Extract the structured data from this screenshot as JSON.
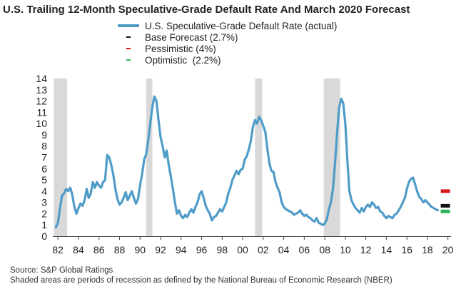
{
  "chart_data": {
    "type": "line",
    "title": "U.S. Trailing 12-Month Speculative-Grade Default Rate And March 2020 Forecast",
    "xlabel": "",
    "ylabel": "",
    "ylim": [
      0,
      14
    ],
    "xlim": [
      1981.5,
      2020.3
    ],
    "y_ticks": [
      "0",
      "1",
      "2",
      "3",
      "4",
      "5",
      "6",
      "7",
      "8",
      "9",
      "10",
      "11",
      "12",
      "13",
      "14"
    ],
    "x_ticks": [
      {
        "year": 1982,
        "label": "82"
      },
      {
        "year": 1984,
        "label": "84"
      },
      {
        "year": 1986,
        "label": "86"
      },
      {
        "year": 1988,
        "label": "88"
      },
      {
        "year": 1990,
        "label": "90"
      },
      {
        "year": 1992,
        "label": "92"
      },
      {
        "year": 1994,
        "label": "94"
      },
      {
        "year": 1996,
        "label": "96"
      },
      {
        "year": 1998,
        "label": "98"
      },
      {
        "year": 2000,
        "label": "00"
      },
      {
        "year": 2002,
        "label": "02"
      },
      {
        "year": 2004,
        "label": "04"
      },
      {
        "year": 2006,
        "label": "06"
      },
      {
        "year": 2008,
        "label": "08"
      },
      {
        "year": 2010,
        "label": "10"
      },
      {
        "year": 2012,
        "label": "12"
      },
      {
        "year": 2014,
        "label": "14"
      },
      {
        "year": 2016,
        "label": "16"
      },
      {
        "year": 2018,
        "label": "18"
      },
      {
        "year": 2020,
        "label": "20"
      }
    ],
    "recessions": [
      [
        1981.6,
        1982.9
      ],
      [
        1990.6,
        1991.2
      ],
      [
        2001.2,
        2001.9
      ],
      [
        2007.9,
        2009.5
      ]
    ],
    "grid": false,
    "legend_position": "top",
    "series": [
      {
        "name": "U.S. Speculative-Grade Default Rate (actual)",
        "color": "#4f9cc9",
        "points": [
          [
            1981.8,
            0.8
          ],
          [
            1982.0,
            1.2
          ],
          [
            1982.2,
            2.5
          ],
          [
            1982.4,
            3.6
          ],
          [
            1982.6,
            3.8
          ],
          [
            1982.8,
            4.2
          ],
          [
            1983.0,
            4.0
          ],
          [
            1983.2,
            4.3
          ],
          [
            1983.4,
            3.7
          ],
          [
            1983.6,
            2.6
          ],
          [
            1983.8,
            2.0
          ],
          [
            1984.0,
            2.5
          ],
          [
            1984.2,
            2.9
          ],
          [
            1984.4,
            2.7
          ],
          [
            1984.6,
            3.2
          ],
          [
            1984.8,
            4.2
          ],
          [
            1985.0,
            3.4
          ],
          [
            1985.2,
            3.8
          ],
          [
            1985.4,
            4.8
          ],
          [
            1985.6,
            4.3
          ],
          [
            1985.8,
            4.8
          ],
          [
            1986.0,
            4.5
          ],
          [
            1986.2,
            4.3
          ],
          [
            1986.4,
            4.8
          ],
          [
            1986.6,
            5.0
          ],
          [
            1986.8,
            7.2
          ],
          [
            1987.0,
            7.0
          ],
          [
            1987.2,
            6.3
          ],
          [
            1987.4,
            5.4
          ],
          [
            1987.6,
            4.2
          ],
          [
            1987.8,
            3.3
          ],
          [
            1988.0,
            2.8
          ],
          [
            1988.2,
            3.0
          ],
          [
            1988.4,
            3.4
          ],
          [
            1988.6,
            3.9
          ],
          [
            1988.8,
            3.2
          ],
          [
            1989.0,
            3.6
          ],
          [
            1989.2,
            4.0
          ],
          [
            1989.4,
            3.4
          ],
          [
            1989.6,
            2.9
          ],
          [
            1989.8,
            3.3
          ],
          [
            1990.0,
            4.5
          ],
          [
            1990.2,
            5.5
          ],
          [
            1990.4,
            6.8
          ],
          [
            1990.6,
            7.3
          ],
          [
            1990.8,
            8.5
          ],
          [
            1991.0,
            10.0
          ],
          [
            1991.2,
            11.5
          ],
          [
            1991.4,
            12.4
          ],
          [
            1991.6,
            12.0
          ],
          [
            1991.8,
            10.3
          ],
          [
            1992.0,
            8.8
          ],
          [
            1992.2,
            8.0
          ],
          [
            1992.4,
            7.0
          ],
          [
            1992.6,
            7.6
          ],
          [
            1992.8,
            6.3
          ],
          [
            1993.0,
            5.3
          ],
          [
            1993.2,
            4.2
          ],
          [
            1993.4,
            3.0
          ],
          [
            1993.6,
            2.0
          ],
          [
            1993.8,
            2.3
          ],
          [
            1994.0,
            1.8
          ],
          [
            1994.2,
            1.6
          ],
          [
            1994.4,
            1.9
          ],
          [
            1994.6,
            1.7
          ],
          [
            1994.8,
            2.1
          ],
          [
            1995.0,
            2.4
          ],
          [
            1995.2,
            2.1
          ],
          [
            1995.4,
            2.6
          ],
          [
            1995.6,
            3.0
          ],
          [
            1995.8,
            3.7
          ],
          [
            1996.0,
            4.0
          ],
          [
            1996.2,
            3.4
          ],
          [
            1996.4,
            2.7
          ],
          [
            1996.6,
            2.3
          ],
          [
            1996.8,
            2.0
          ],
          [
            1997.0,
            1.4
          ],
          [
            1997.2,
            1.7
          ],
          [
            1997.4,
            1.8
          ],
          [
            1997.6,
            2.1
          ],
          [
            1997.8,
            2.4
          ],
          [
            1998.0,
            2.2
          ],
          [
            1998.2,
            2.6
          ],
          [
            1998.4,
            3.0
          ],
          [
            1998.6,
            3.8
          ],
          [
            1998.8,
            4.3
          ],
          [
            1999.0,
            5.0
          ],
          [
            1999.2,
            5.4
          ],
          [
            1999.4,
            5.8
          ],
          [
            1999.6,
            5.5
          ],
          [
            1999.8,
            5.9
          ],
          [
            2000.0,
            6.0
          ],
          [
            2000.2,
            6.8
          ],
          [
            2000.4,
            7.1
          ],
          [
            2000.6,
            7.7
          ],
          [
            2000.8,
            8.5
          ],
          [
            2001.0,
            9.7
          ],
          [
            2001.2,
            10.3
          ],
          [
            2001.4,
            10.0
          ],
          [
            2001.6,
            10.6
          ],
          [
            2001.8,
            10.3
          ],
          [
            2002.0,
            9.8
          ],
          [
            2002.2,
            9.3
          ],
          [
            2002.4,
            7.8
          ],
          [
            2002.6,
            6.5
          ],
          [
            2002.8,
            5.8
          ],
          [
            2003.0,
            5.7
          ],
          [
            2003.2,
            4.8
          ],
          [
            2003.4,
            4.3
          ],
          [
            2003.6,
            3.9
          ],
          [
            2003.8,
            3.0
          ],
          [
            2004.0,
            2.6
          ],
          [
            2004.2,
            2.4
          ],
          [
            2004.4,
            2.3
          ],
          [
            2004.6,
            2.2
          ],
          [
            2004.8,
            2.1
          ],
          [
            2005.0,
            1.9
          ],
          [
            2005.2,
            2.0
          ],
          [
            2005.4,
            2.1
          ],
          [
            2005.6,
            2.3
          ],
          [
            2005.8,
            2.0
          ],
          [
            2006.0,
            1.8
          ],
          [
            2006.2,
            1.9
          ],
          [
            2006.4,
            1.7
          ],
          [
            2006.6,
            1.6
          ],
          [
            2006.8,
            1.4
          ],
          [
            2007.0,
            1.3
          ],
          [
            2007.2,
            1.6
          ],
          [
            2007.4,
            1.2
          ],
          [
            2007.6,
            1.1
          ],
          [
            2007.8,
            1.0
          ],
          [
            2008.0,
            1.1
          ],
          [
            2008.2,
            1.5
          ],
          [
            2008.4,
            2.4
          ],
          [
            2008.6,
            3.0
          ],
          [
            2008.8,
            4.2
          ],
          [
            2009.0,
            6.5
          ],
          [
            2009.2,
            9.2
          ],
          [
            2009.4,
            11.4
          ],
          [
            2009.6,
            12.2
          ],
          [
            2009.8,
            11.8
          ],
          [
            2010.0,
            10.0
          ],
          [
            2010.2,
            6.8
          ],
          [
            2010.4,
            4.0
          ],
          [
            2010.6,
            3.2
          ],
          [
            2010.8,
            2.8
          ],
          [
            2011.0,
            2.5
          ],
          [
            2011.2,
            2.3
          ],
          [
            2011.4,
            2.1
          ],
          [
            2011.6,
            2.5
          ],
          [
            2011.8,
            2.2
          ],
          [
            2012.0,
            2.6
          ],
          [
            2012.2,
            2.8
          ],
          [
            2012.4,
            2.6
          ],
          [
            2012.6,
            3.0
          ],
          [
            2012.8,
            2.8
          ],
          [
            2013.0,
            2.5
          ],
          [
            2013.2,
            2.6
          ],
          [
            2013.4,
            2.2
          ],
          [
            2013.6,
            2.1
          ],
          [
            2013.8,
            1.8
          ],
          [
            2014.0,
            1.6
          ],
          [
            2014.2,
            1.8
          ],
          [
            2014.4,
            1.7
          ],
          [
            2014.6,
            1.6
          ],
          [
            2014.8,
            1.9
          ],
          [
            2015.0,
            2.0
          ],
          [
            2015.2,
            2.3
          ],
          [
            2015.4,
            2.6
          ],
          [
            2015.6,
            3.0
          ],
          [
            2015.8,
            3.4
          ],
          [
            2016.0,
            4.2
          ],
          [
            2016.2,
            4.8
          ],
          [
            2016.4,
            5.1
          ],
          [
            2016.6,
            5.2
          ],
          [
            2016.8,
            4.6
          ],
          [
            2017.0,
            4.0
          ],
          [
            2017.2,
            3.5
          ],
          [
            2017.4,
            3.3
          ],
          [
            2017.6,
            3.0
          ],
          [
            2017.8,
            3.2
          ],
          [
            2018.0,
            3.0
          ],
          [
            2018.2,
            2.8
          ],
          [
            2018.4,
            2.6
          ],
          [
            2018.6,
            2.5
          ],
          [
            2018.8,
            2.4
          ],
          [
            2019.0,
            2.3
          ]
        ]
      }
    ],
    "forecasts": [
      {
        "name": "Base Forecast (2.7%)",
        "value": 2.7,
        "color": "#111111"
      },
      {
        "name": "Pessimistic (4%)",
        "value": 4.0,
        "color": "#d7191c"
      },
      {
        "name": "Optimistic  (2.2%)",
        "value": 2.2,
        "color": "#2bb35a"
      }
    ],
    "source": "Source: S&P Global Ratings",
    "note": "Shaded areas are periods of recession as defined by the National Bureau of Economic Research (NBER)"
  }
}
